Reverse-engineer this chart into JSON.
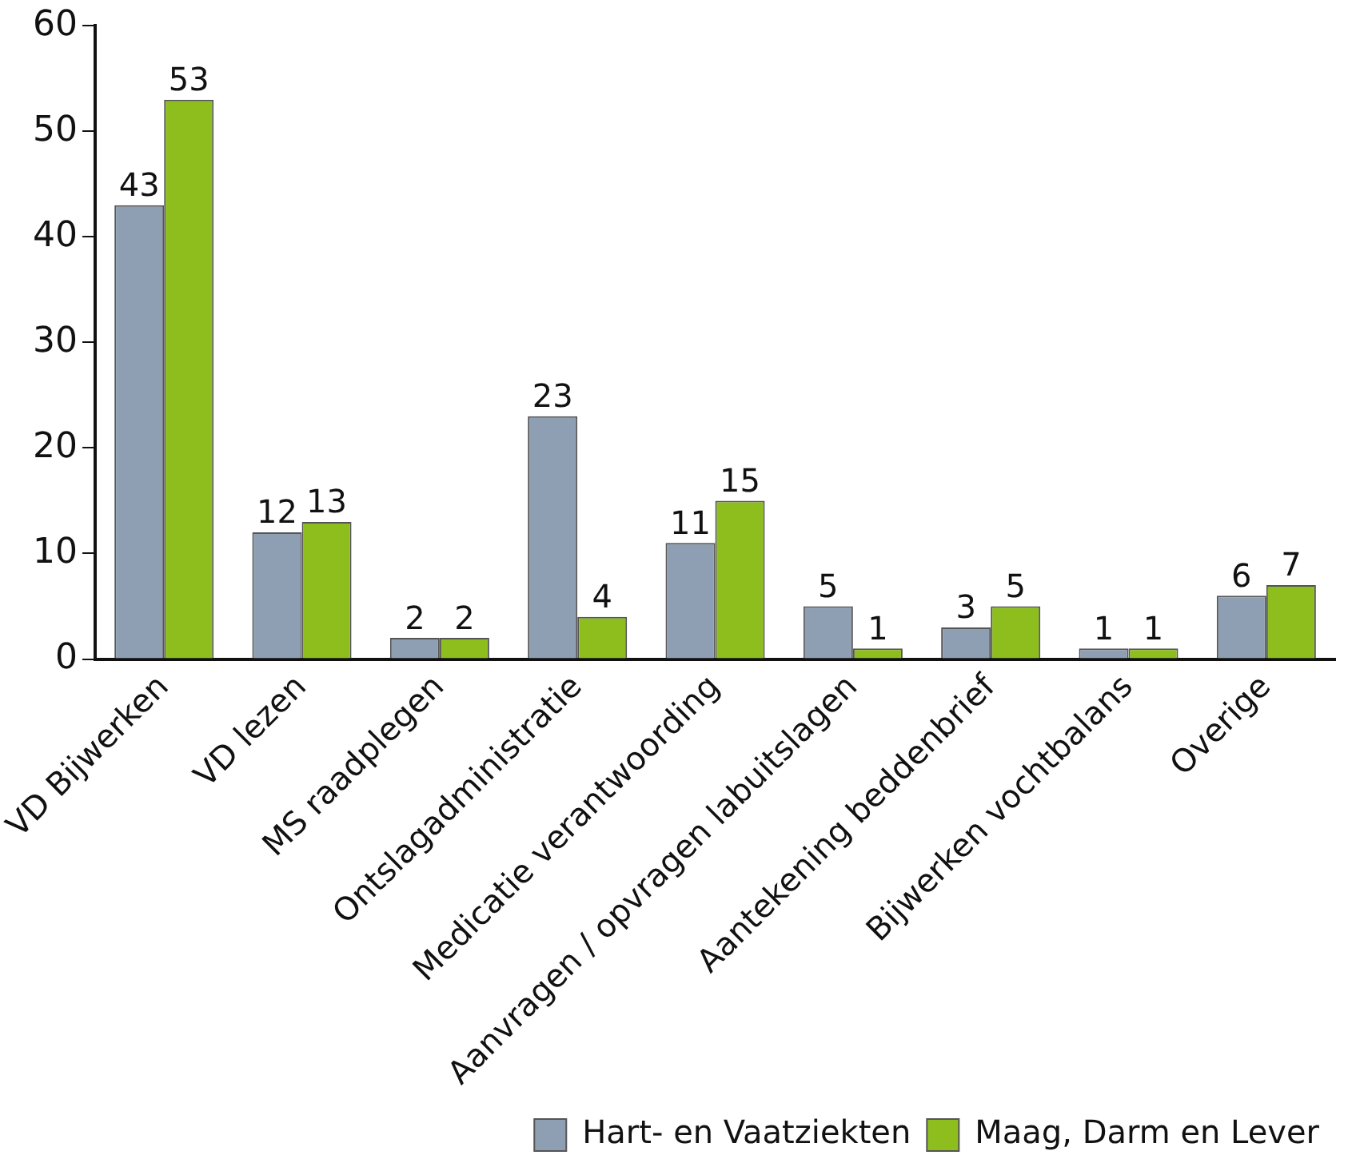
{
  "chart_data": {
    "type": "bar",
    "categories": [
      "VD Bijwerken",
      "VD lezen",
      "MS raadplegen",
      "Ontslagadministratie",
      "Medicatie verantwoording",
      "Aanvragen / opvragen labuitslagen",
      "Aantekening beddenbrief",
      "Bijwerken vochtbalans",
      "Overige"
    ],
    "series": [
      {
        "name": "Hart- en Vaatziekten",
        "color": "#8e9fb3",
        "values": [
          43,
          12,
          2,
          23,
          11,
          5,
          3,
          1,
          6
        ]
      },
      {
        "name": "Maag, Darm en Lever",
        "color": "#8dbe1e",
        "values": [
          53,
          13,
          2,
          4,
          15,
          1,
          5,
          1,
          7
        ]
      }
    ],
    "ylim": [
      0,
      60
    ],
    "yticks": [
      0,
      10,
      20,
      30,
      40,
      50,
      60
    ],
    "grid": false,
    "legend": "bottom right",
    "data_labels": true
  }
}
